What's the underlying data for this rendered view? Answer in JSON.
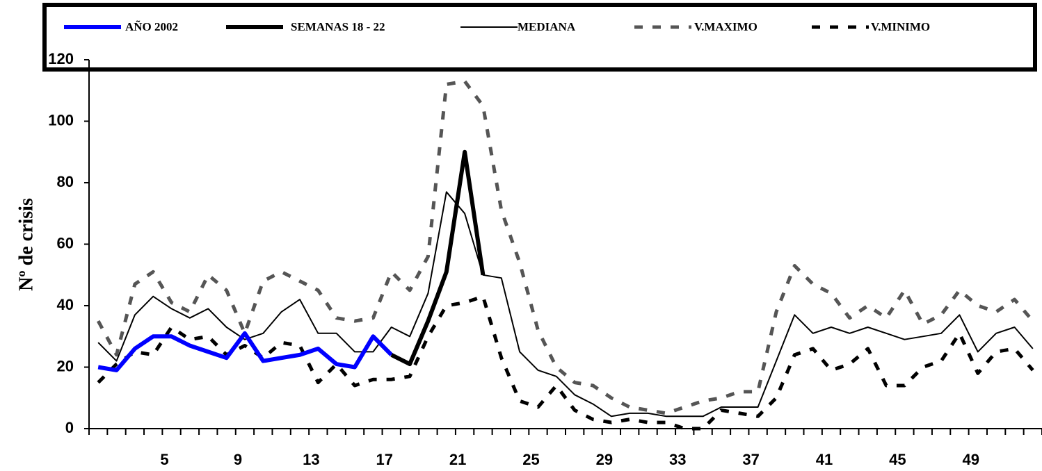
{
  "chart_data": {
    "type": "line",
    "y_label": "Nº de crisis",
    "categories": [
      null,
      null,
      null,
      null,
      "5",
      null,
      null,
      null,
      "9",
      null,
      null,
      null,
      "13",
      null,
      null,
      null,
      "17",
      null,
      null,
      null,
      "21",
      null,
      null,
      null,
      "25",
      null,
      null,
      null,
      "29",
      null,
      null,
      null,
      "33",
      null,
      null,
      null,
      "37",
      null,
      null,
      null,
      "41",
      null,
      null,
      null,
      "45",
      null,
      null,
      null,
      "49",
      null,
      null,
      null
    ],
    "ylim": [
      0,
      120
    ],
    "yticks": [
      0,
      20,
      40,
      60,
      80,
      100,
      120
    ],
    "grid": false,
    "legend": "top",
    "series": [
      {
        "name": "AÑO 2002",
        "color": "#0000ff",
        "style": "thick",
        "values": [
          20,
          19,
          26,
          30,
          30,
          27,
          25,
          23,
          31,
          22,
          23,
          24,
          26,
          21,
          20,
          30,
          24,
          null,
          null,
          null,
          null,
          null,
          null,
          null,
          null,
          null,
          null,
          null,
          null,
          null,
          null,
          null,
          null,
          null,
          null,
          null,
          null,
          null,
          null,
          null,
          null,
          null,
          null,
          null,
          null,
          null,
          null,
          null,
          null,
          null,
          null,
          null
        ]
      },
      {
        "name": "SEMANAS 18 - 22",
        "color": "#000000",
        "style": "thick",
        "values": [
          null,
          null,
          null,
          null,
          null,
          null,
          null,
          null,
          null,
          null,
          null,
          null,
          null,
          null,
          null,
          null,
          24,
          21,
          35,
          51,
          90,
          50,
          null,
          null,
          null,
          null,
          null,
          null,
          null,
          null,
          null,
          null,
          null,
          null,
          null,
          null,
          null,
          null,
          null,
          null,
          null,
          null,
          null,
          null,
          null,
          null,
          null,
          null,
          null,
          null,
          null,
          null
        ]
      },
      {
        "name": "MEDIANA",
        "color": "#000000",
        "style": "thin",
        "values": [
          28,
          22,
          37,
          43,
          39,
          36,
          39,
          33,
          29,
          31,
          38,
          42,
          31,
          31,
          25,
          25,
          33,
          30,
          44,
          77,
          70,
          50,
          49,
          25,
          19,
          17,
          11,
          8,
          4,
          5,
          5,
          4,
          4,
          4,
          7,
          7,
          7,
          22,
          37,
          31,
          33,
          31,
          33,
          31,
          29,
          30,
          31,
          37,
          25,
          31,
          33,
          26
        ]
      },
      {
        "name": "V.MAXIMO",
        "color": "#555555",
        "style": "dashed",
        "values": [
          35,
          24,
          47,
          51,
          41,
          38,
          50,
          45,
          31,
          48,
          51,
          48,
          45,
          36,
          35,
          36,
          51,
          45,
          56,
          112,
          113,
          105,
          71,
          54,
          32,
          20,
          15,
          14,
          10,
          7,
          6,
          5,
          7,
          9,
          10,
          12,
          12,
          38,
          53,
          47,
          44,
          36,
          40,
          36,
          45,
          34,
          37,
          45,
          40,
          38,
          42,
          35
        ]
      },
      {
        "name": "V.MINIMO",
        "color": "#000000",
        "style": "dashed",
        "values": [
          15,
          21,
          25,
          24,
          33,
          29,
          30,
          24,
          27,
          23,
          28,
          27,
          15,
          21,
          14,
          16,
          16,
          17,
          30,
          40,
          41,
          43,
          23,
          9,
          7,
          14,
          6,
          3,
          2,
          3,
          2,
          2,
          0,
          0,
          6,
          5,
          4,
          10,
          24,
          26,
          19,
          21,
          26,
          14,
          14,
          20,
          22,
          31,
          18,
          25,
          26,
          19
        ]
      }
    ]
  }
}
